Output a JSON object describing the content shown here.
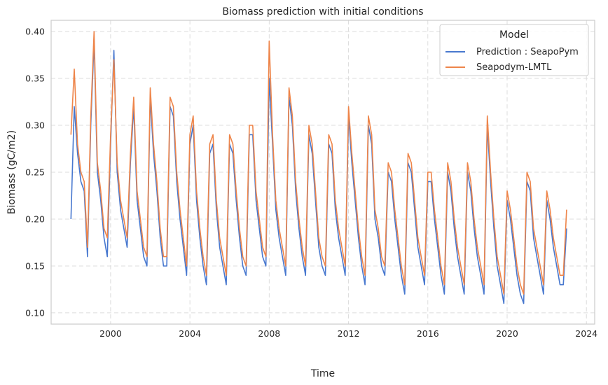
{
  "chart_data": {
    "type": "line",
    "title": "Biomass prediction with initial conditions",
    "xlabel": "Time",
    "ylabel": "Biomass (gC/m2)",
    "xlim": [
      "1997-01",
      "2024-06"
    ],
    "ylim": [
      0.088,
      0.412
    ],
    "x_ticks": [
      "2000",
      "2004",
      "2008",
      "2012",
      "2016",
      "2020",
      "2024"
    ],
    "y_ticks": [
      "0.10",
      "0.15",
      "0.20",
      "0.25",
      "0.30",
      "0.35",
      "0.40"
    ],
    "grid": true,
    "legend": {
      "title": "Model",
      "placement": "top-right"
    },
    "x": [
      "1998-01",
      "1998-03",
      "1998-05",
      "1998-07",
      "1998-09",
      "1998-11",
      "1999-01",
      "1999-03",
      "1999-05",
      "1999-07",
      "1999-09",
      "1999-11",
      "2000-01",
      "2000-03",
      "2000-05",
      "2000-07",
      "2000-09",
      "2000-11",
      "2001-01",
      "2001-03",
      "2001-05",
      "2001-07",
      "2001-09",
      "2001-11",
      "2002-01",
      "2002-03",
      "2002-05",
      "2002-07",
      "2002-09",
      "2002-11",
      "2003-01",
      "2003-03",
      "2003-05",
      "2003-07",
      "2003-09",
      "2003-11",
      "2004-01",
      "2004-03",
      "2004-05",
      "2004-07",
      "2004-09",
      "2004-11",
      "2005-01",
      "2005-03",
      "2005-05",
      "2005-07",
      "2005-09",
      "2005-11",
      "2006-01",
      "2006-03",
      "2006-05",
      "2006-07",
      "2006-09",
      "2006-11",
      "2007-01",
      "2007-03",
      "2007-05",
      "2007-07",
      "2007-09",
      "2007-11",
      "2008-01",
      "2008-03",
      "2008-05",
      "2008-07",
      "2008-09",
      "2008-11",
      "2009-01",
      "2009-03",
      "2009-05",
      "2009-07",
      "2009-09",
      "2009-11",
      "2010-01",
      "2010-03",
      "2010-05",
      "2010-07",
      "2010-09",
      "2010-11",
      "2011-01",
      "2011-03",
      "2011-05",
      "2011-07",
      "2011-09",
      "2011-11",
      "2012-01",
      "2012-03",
      "2012-05",
      "2012-07",
      "2012-09",
      "2012-11",
      "2013-01",
      "2013-03",
      "2013-05",
      "2013-07",
      "2013-09",
      "2013-11",
      "2014-01",
      "2014-03",
      "2014-05",
      "2014-07",
      "2014-09",
      "2014-11",
      "2015-01",
      "2015-03",
      "2015-05",
      "2015-07",
      "2015-09",
      "2015-11",
      "2016-01",
      "2016-03",
      "2016-05",
      "2016-07",
      "2016-09",
      "2016-11",
      "2017-01",
      "2017-03",
      "2017-05",
      "2017-07",
      "2017-09",
      "2017-11",
      "2018-01",
      "2018-03",
      "2018-05",
      "2018-07",
      "2018-09",
      "2018-11",
      "2019-01",
      "2019-03",
      "2019-05",
      "2019-07",
      "2019-09",
      "2019-11",
      "2020-01",
      "2020-03",
      "2020-05",
      "2020-07",
      "2020-09",
      "2020-11",
      "2021-01",
      "2021-03",
      "2021-05",
      "2021-07",
      "2021-09",
      "2021-11",
      "2022-01",
      "2022-03",
      "2022-05",
      "2022-07",
      "2022-09",
      "2022-11",
      "2023-01"
    ],
    "series": [
      {
        "name": "Prediction : SeapoPym",
        "color": "#4878cf",
        "values": [
          0.2,
          0.32,
          0.27,
          0.24,
          0.23,
          0.16,
          0.3,
          0.39,
          0.25,
          0.22,
          0.18,
          0.16,
          0.28,
          0.38,
          0.25,
          0.21,
          0.19,
          0.17,
          0.26,
          0.32,
          0.22,
          0.19,
          0.16,
          0.15,
          0.33,
          0.27,
          0.23,
          0.18,
          0.15,
          0.15,
          0.32,
          0.31,
          0.24,
          0.2,
          0.17,
          0.14,
          0.28,
          0.3,
          0.22,
          0.18,
          0.15,
          0.13,
          0.27,
          0.28,
          0.21,
          0.17,
          0.15,
          0.13,
          0.28,
          0.27,
          0.22,
          0.18,
          0.15,
          0.14,
          0.29,
          0.29,
          0.22,
          0.19,
          0.16,
          0.15,
          0.35,
          0.28,
          0.21,
          0.18,
          0.16,
          0.14,
          0.33,
          0.3,
          0.23,
          0.19,
          0.16,
          0.14,
          0.29,
          0.27,
          0.22,
          0.17,
          0.15,
          0.14,
          0.28,
          0.27,
          0.21,
          0.18,
          0.16,
          0.14,
          0.31,
          0.26,
          0.22,
          0.18,
          0.15,
          0.13,
          0.3,
          0.28,
          0.2,
          0.18,
          0.15,
          0.14,
          0.25,
          0.24,
          0.2,
          0.17,
          0.14,
          0.12,
          0.26,
          0.25,
          0.21,
          0.17,
          0.15,
          0.13,
          0.24,
          0.24,
          0.2,
          0.17,
          0.14,
          0.12,
          0.25,
          0.23,
          0.19,
          0.16,
          0.14,
          0.12,
          0.25,
          0.23,
          0.19,
          0.16,
          0.14,
          0.12,
          0.3,
          0.24,
          0.19,
          0.15,
          0.13,
          0.11,
          0.22,
          0.2,
          0.17,
          0.14,
          0.12,
          0.11,
          0.24,
          0.23,
          0.18,
          0.16,
          0.14,
          0.12,
          0.22,
          0.2,
          0.17,
          0.15,
          0.13,
          0.13,
          0.19
        ]
      },
      {
        "name": "Seapodym-LMTL",
        "color": "#ee854a",
        "values": [
          0.29,
          0.36,
          0.28,
          0.25,
          0.24,
          0.17,
          0.31,
          0.4,
          0.26,
          0.23,
          0.19,
          0.18,
          0.29,
          0.37,
          0.26,
          0.22,
          0.2,
          0.18,
          0.27,
          0.33,
          0.23,
          0.2,
          0.17,
          0.16,
          0.34,
          0.28,
          0.24,
          0.19,
          0.16,
          0.16,
          0.33,
          0.32,
          0.25,
          0.21,
          0.18,
          0.15,
          0.29,
          0.31,
          0.23,
          0.19,
          0.16,
          0.14,
          0.28,
          0.29,
          0.22,
          0.18,
          0.16,
          0.14,
          0.29,
          0.28,
          0.23,
          0.19,
          0.16,
          0.15,
          0.3,
          0.3,
          0.23,
          0.2,
          0.17,
          0.16,
          0.39,
          0.29,
          0.22,
          0.19,
          0.17,
          0.15,
          0.34,
          0.31,
          0.24,
          0.2,
          0.17,
          0.15,
          0.3,
          0.28,
          0.23,
          0.18,
          0.16,
          0.15,
          0.29,
          0.28,
          0.22,
          0.19,
          0.17,
          0.15,
          0.32,
          0.27,
          0.23,
          0.19,
          0.16,
          0.14,
          0.31,
          0.29,
          0.21,
          0.19,
          0.16,
          0.15,
          0.26,
          0.25,
          0.21,
          0.18,
          0.15,
          0.13,
          0.27,
          0.26,
          0.22,
          0.18,
          0.16,
          0.14,
          0.25,
          0.25,
          0.21,
          0.18,
          0.15,
          0.13,
          0.26,
          0.24,
          0.2,
          0.17,
          0.15,
          0.13,
          0.26,
          0.24,
          0.2,
          0.17,
          0.15,
          0.13,
          0.31,
          0.25,
          0.2,
          0.16,
          0.14,
          0.12,
          0.23,
          0.21,
          0.18,
          0.15,
          0.13,
          0.12,
          0.25,
          0.24,
          0.19,
          0.17,
          0.15,
          0.13,
          0.23,
          0.21,
          0.18,
          0.16,
          0.14,
          0.14,
          0.21
        ]
      }
    ]
  }
}
